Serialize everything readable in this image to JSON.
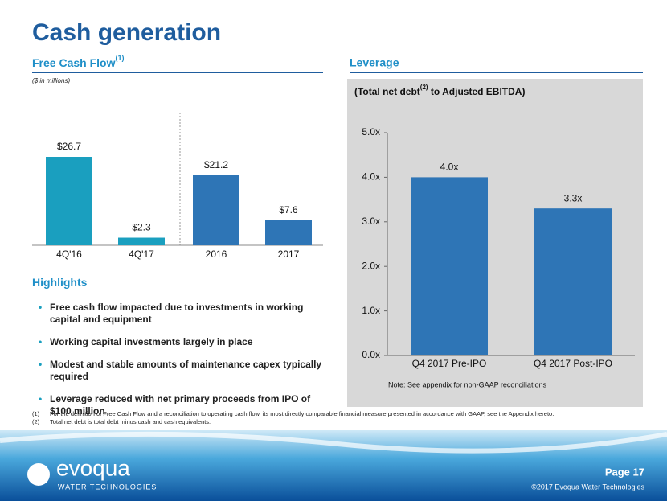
{
  "title": "Cash generation",
  "chart_data": [
    {
      "type": "bar",
      "title": "Free Cash Flow",
      "title_note": "(1)",
      "subtitle": "($ in millions)",
      "categories": [
        "4Q'16",
        "4Q'17",
        "2016",
        "2017"
      ],
      "values": [
        26.7,
        2.3,
        21.2,
        7.6
      ],
      "value_labels": [
        "$26.7",
        "$2.3",
        "$21.2",
        "$7.6"
      ],
      "colors": [
        "#1a9fbf",
        "#1a9fbf",
        "#2e75b6",
        "#2e75b6"
      ]
    },
    {
      "type": "bar",
      "title": "Leverage",
      "subtitle": "(Total net debt",
      "subtitle_note": "(2)",
      "subtitle_end": " to Adjusted EBITDA)",
      "categories": [
        "Q4 2017 Pre-IPO",
        "Q4 2017 Post-IPO"
      ],
      "values": [
        4.0,
        3.3
      ],
      "value_labels": [
        "4.0x",
        "3.3x"
      ],
      "color": "#2e75b6",
      "ylim": [
        0,
        5
      ],
      "yticks": [
        {
          "value": 0,
          "label": "0.0x"
        },
        {
          "value": 1,
          "label": "1.0x"
        },
        {
          "value": 2,
          "label": "2.0x"
        },
        {
          "value": 3,
          "label": "3.0x"
        },
        {
          "value": 4,
          "label": "4.0x"
        },
        {
          "value": 5,
          "label": "5.0x"
        }
      ],
      "note": "Note: See appendix for non-GAAP reconciliations"
    }
  ],
  "highlights": {
    "title": "Highlights",
    "items": [
      "Free cash flow impacted due to investments in working capital and equipment",
      "Working capital investments largely in place",
      "Modest and stable amounts of maintenance capex typically required",
      "Leverage reduced with net primary proceeds from IPO of $100 million"
    ]
  },
  "footnotes": [
    {
      "marker": "(1)",
      "text": "For the definition of Free Cash Flow and a reconciliation to operating cash flow, its most directly comparable financial measure presented in accordance with GAAP, see the Appendix hereto."
    },
    {
      "marker": "(2)",
      "text": "Total net debt is total debt minus cash and cash equivalents."
    }
  ],
  "footer": {
    "logo": "evoqua",
    "tagline": "WATER TECHNOLOGIES",
    "page": "Page 17",
    "copyright": "©2017 Evoqua Water Technologies"
  }
}
